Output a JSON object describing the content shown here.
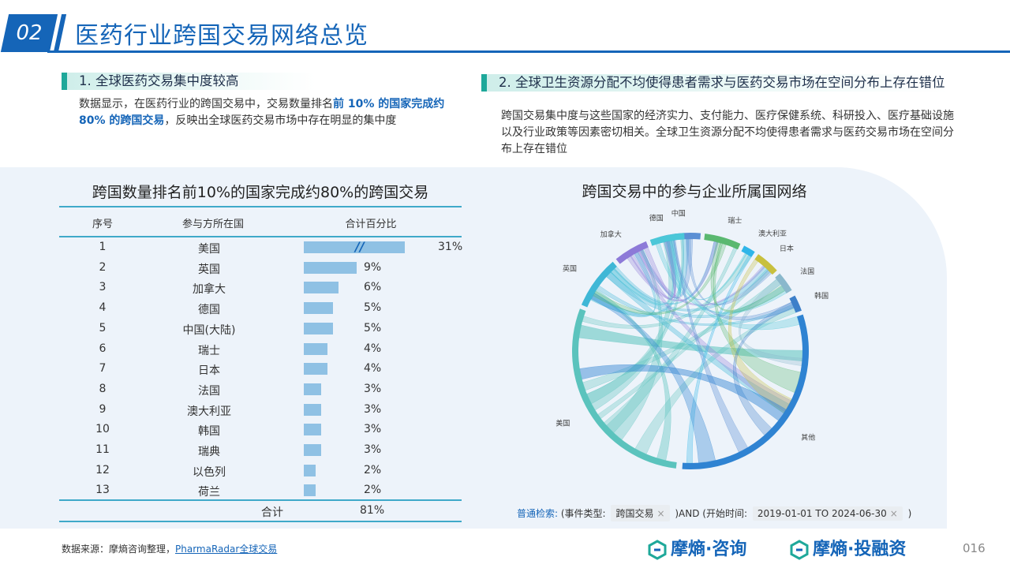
{
  "header": {
    "number": "02",
    "title": "医药行业跨国交易网络总览"
  },
  "section1": {
    "title": "1. 全球医药交易集中度较高",
    "body_pre": "数据显示，在医药行业的跨国交易中，交易数量排名",
    "body_highlight": "前 10% 的国家完成约 80% 的跨国交易",
    "body_post": "，反映出全球医药交易市场中存在明显的集中度"
  },
  "section2": {
    "title": "2. 全球卫生资源分配不均使得患者需求与医药交易市场在空间分布上存在错位",
    "body": "跨国交易集中度与这些国家的经济实力、支付能力、医疗保健系统、科研投入、医疗基础设施以及行业政策等因素密切相关。全球卫生资源分配不均使得患者需求与医药交易市场在空间分布上存在错位"
  },
  "table": {
    "title": "跨国数量排名前10%的国家完成约80%的跨国交易",
    "headers": [
      "序号",
      "参与方所在国",
      "合计百分比"
    ],
    "break_mark": "//",
    "total_label": "合计",
    "total_value": "81%"
  },
  "chart_data": [
    {
      "type": "bar",
      "title": "跨国数量排名前10%的国家完成约80%的跨国交易",
      "categories": [
        "美国",
        "英国",
        "加拿大",
        "德国",
        "中国(大陆)",
        "瑞士",
        "日本",
        "法国",
        "澳大利亚",
        "韩国",
        "瑞典",
        "以色列",
        "荷兰"
      ],
      "ranks": [
        "1",
        "2",
        "3",
        "4",
        "5",
        "6",
        "7",
        "8",
        "9",
        "10",
        "11",
        "12",
        "13"
      ],
      "values": [
        31,
        9,
        6,
        5,
        5,
        4,
        4,
        3,
        3,
        3,
        3,
        2,
        2
      ],
      "labels": [
        "31%",
        "9%",
        "6%",
        "5%",
        "5%",
        "4%",
        "4%",
        "3%",
        "3%",
        "3%",
        "3%",
        "2%",
        "2%"
      ],
      "orientation": "horizontal",
      "axis_break": true
    },
    {
      "type": "chord",
      "title": "跨国交易中的参与企业所属国网络",
      "nodes": [
        "中国",
        "瑞士",
        "澳大利亚",
        "日本",
        "法国",
        "韩国",
        "其他",
        "美国",
        "英国",
        "加拿大",
        "德国"
      ],
      "node_colors": [
        "#5b8fd4",
        "#5ab870",
        "#2fb5e8",
        "#c8c03e",
        "#8ab8cc",
        "#3d7fc9",
        "#2f83d2",
        "#5bc3bd",
        "#3fb7d6",
        "#8d7ad8",
        "#4bc7d8"
      ]
    }
  ],
  "chord_title": "跨国交易中的参与企业所属国网络",
  "search": {
    "label": "普通检索:",
    "pre": "(事件类型:",
    "chip1": "跨国交易",
    "mid": ")AND (开始时间:",
    "chip2": "2019-01-01 TO 2024-06-30",
    "post": ")",
    "close": "×"
  },
  "footer": {
    "source_label": "数据来源：摩熵咨询整理，",
    "source_link": "PharmaRadar全球交易",
    "logo1": "摩熵·咨询",
    "logo2": "摩熵·投融资",
    "page": "016"
  }
}
